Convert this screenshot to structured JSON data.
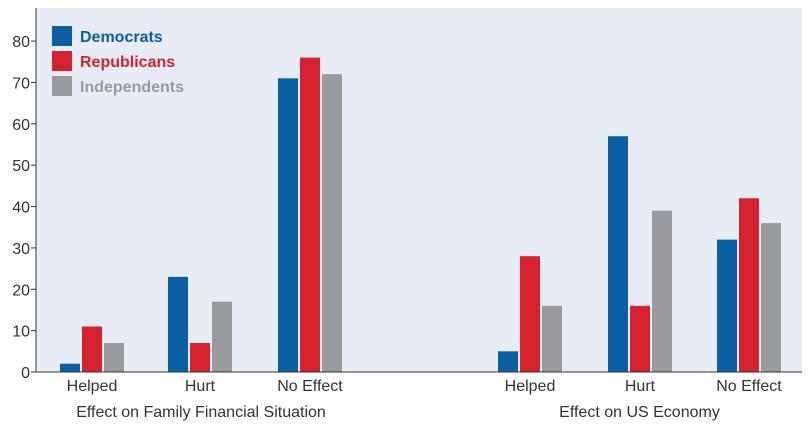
{
  "chart_data": {
    "type": "bar",
    "title": "",
    "xlabel": "",
    "ylabel": "",
    "ylim": [
      0,
      88
    ],
    "y_ticks": [
      0,
      10,
      20,
      30,
      40,
      50,
      60,
      70,
      80
    ],
    "grid": false,
    "legend_position": "top-left",
    "groups": [
      {
        "label": "Effect on Family Financial Situation",
        "categories": [
          "Helped",
          "Hurt",
          "No Effect"
        ]
      },
      {
        "label": "Effect on US Economy",
        "categories": [
          "Helped",
          "Hurt",
          "No Effect"
        ]
      }
    ],
    "series": [
      {
        "name": "Democrats",
        "color": "#0a5fa3",
        "values": [
          2,
          23,
          71,
          5,
          57,
          32
        ]
      },
      {
        "name": "Republicans",
        "color": "#d4232e",
        "values": [
          11,
          7,
          76,
          28,
          16,
          42
        ]
      },
      {
        "name": "Independents",
        "color": "#999a9d",
        "values": [
          7,
          17,
          72,
          16,
          39,
          36
        ]
      }
    ]
  }
}
